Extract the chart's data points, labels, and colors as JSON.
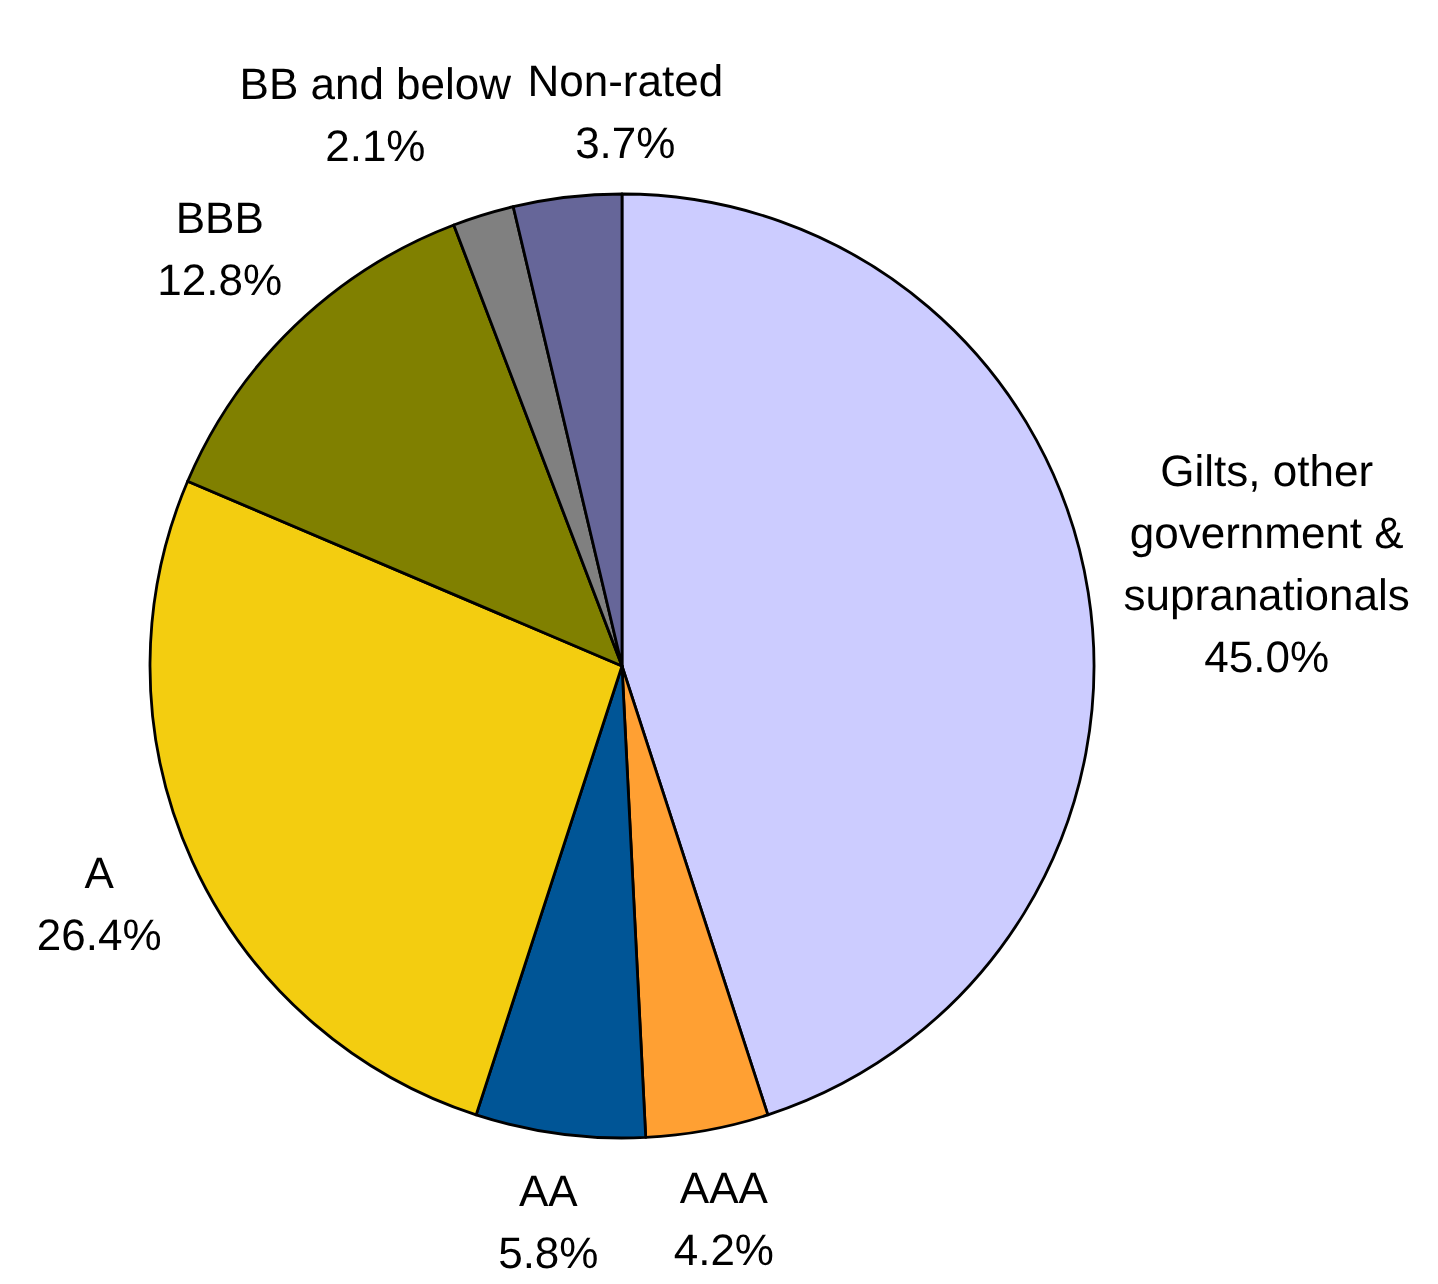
{
  "chart_data": {
    "type": "pie",
    "categories": [
      "Gilts, other government & supranationals",
      "AAA",
      "AA",
      "A",
      "BBB",
      "BB and below",
      "Non-rated"
    ],
    "values": [
      45.0,
      4.2,
      5.8,
      26.4,
      12.8,
      2.1,
      3.7
    ],
    "colors": [
      "#ccccff",
      "#ffa033",
      "#005596",
      "#f3cd10",
      "#808000",
      "#808080",
      "#666699"
    ],
    "value_labels": [
      "45.0%",
      "4.2%",
      "5.8%",
      "26.4%",
      "12.8%",
      "2.1%",
      "3.7%"
    ]
  }
}
